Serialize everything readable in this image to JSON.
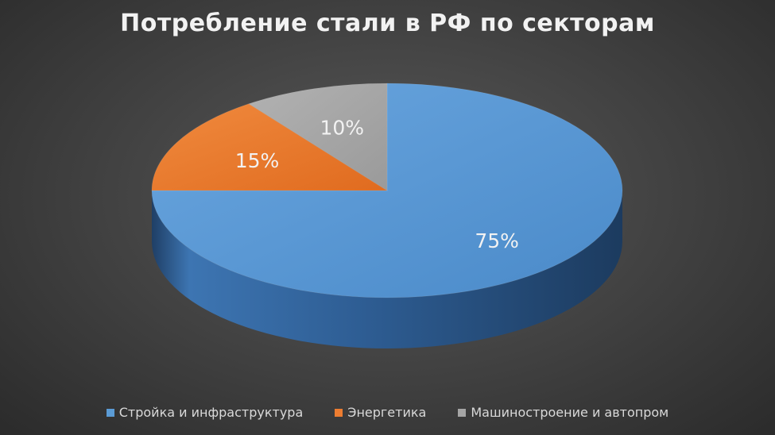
{
  "chart_data": {
    "type": "pie",
    "title": "Потребление стали в РФ по секторам",
    "categories": [
      "Стройка и инфраструктура",
      "Энергетика",
      "Машиностроение и автопром"
    ],
    "values": [
      75,
      15,
      10
    ],
    "labels": [
      "75%",
      "15%",
      "10%"
    ],
    "colors": [
      "#5b9bd5",
      "#ed7d31",
      "#a5a5a5"
    ],
    "legend_position": "bottom",
    "style": "3d"
  }
}
